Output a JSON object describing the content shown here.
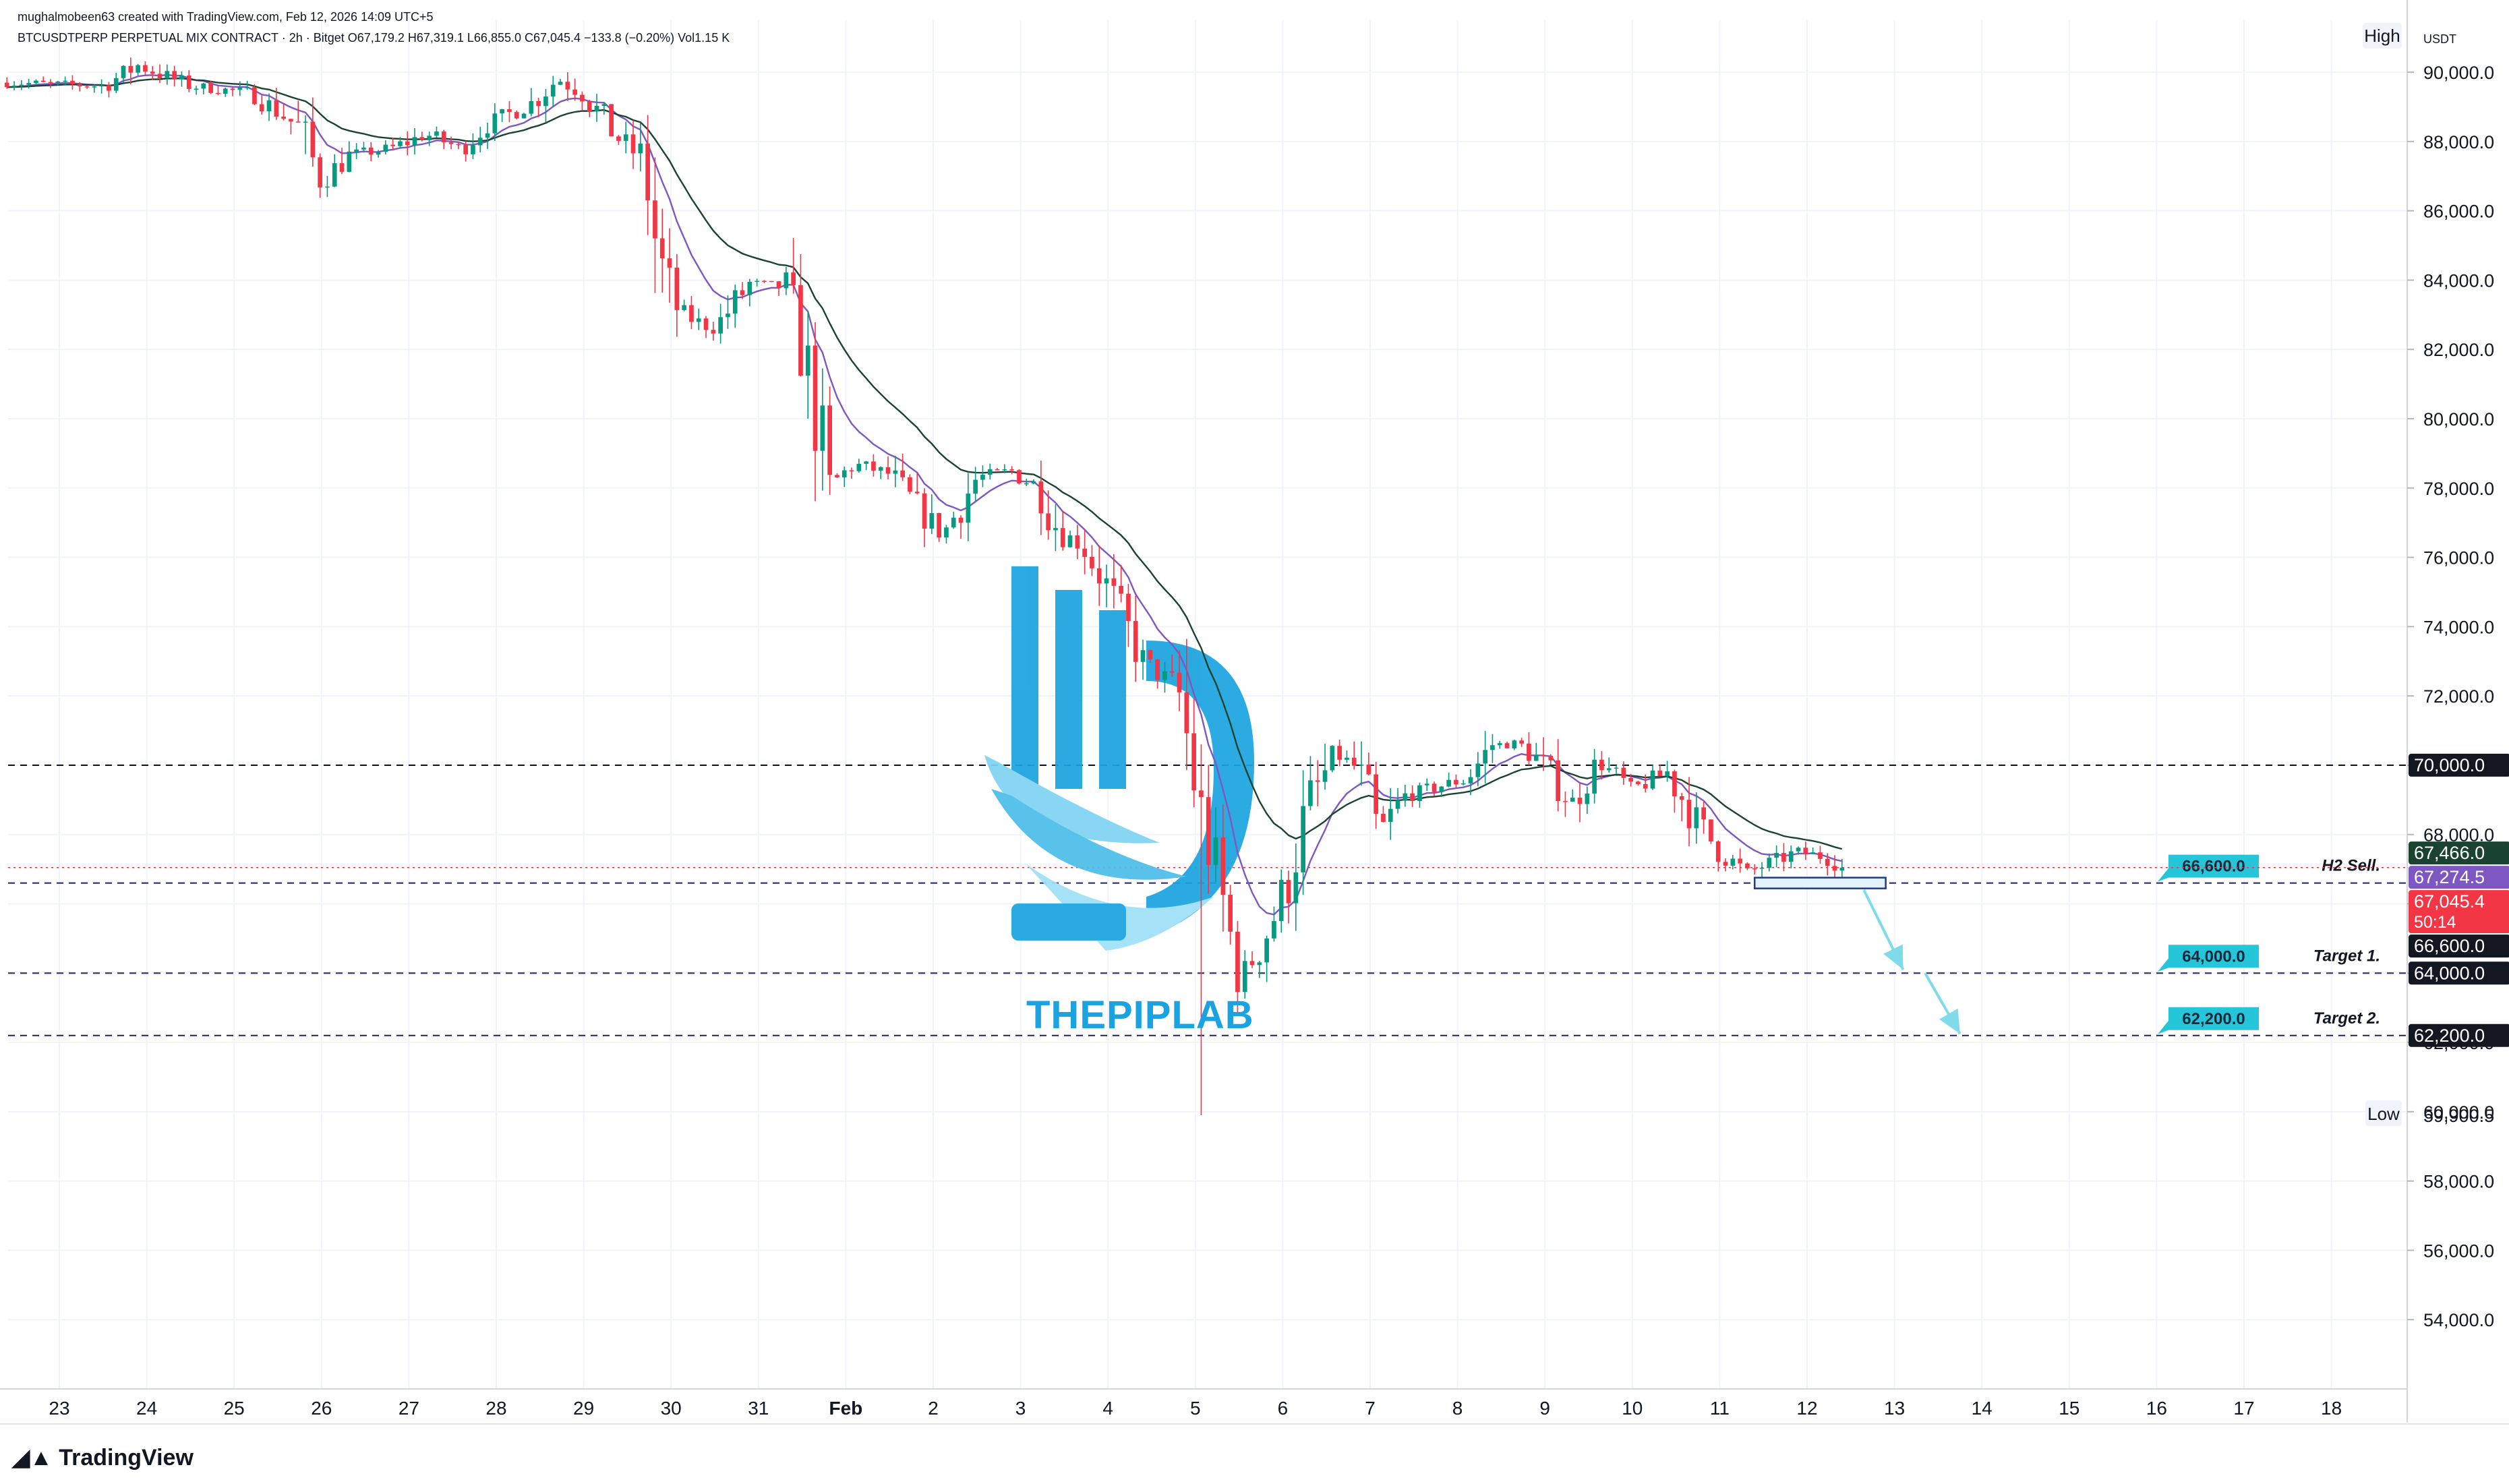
{
  "header": {
    "created_line": "mughalmobeen63 created with TradingView.com, Feb 12, 2026 14:09 UTC+5",
    "symbol_line": "BTCUSDTPERP PERPETUAL MIX CONTRACT · 2h · Bitget  O67,179.2  H67,319.1  L66,855.0  C67,045.4  −133.8 (−0.20%)  Vol1.15 K"
  },
  "footer": {
    "brand": "TradingView"
  },
  "watermark": {
    "text": "THEPIPLAB",
    "color": "#1aa3e0"
  },
  "chart_data": {
    "type": "candlestick",
    "currency_label": "USDT",
    "ylim": [
      52000,
      91500
    ],
    "y_ticks": [
      54000,
      56000,
      58000,
      60000,
      62000,
      64000,
      66000,
      68000,
      70000,
      72000,
      74000,
      76000,
      78000,
      80000,
      82000,
      84000,
      86000,
      88000,
      90000
    ],
    "y_tick_labels": [
      "54,000.0",
      "56,000.0",
      "58,000.0",
      "60,000.0",
      "62,000.0",
      "64,000.0",
      "66,000.0",
      "68,000.0",
      "70,000.0",
      "72,000.0",
      "74,000.0",
      "76,000.0",
      "78,000.0",
      "80,000.0",
      "82,000.0",
      "84,000.0",
      "86,000.0",
      "88,000.0",
      "90,000.0"
    ],
    "x_tick_labels": [
      "23",
      "24",
      "25",
      "26",
      "27",
      "28",
      "29",
      "30",
      "31",
      "Feb",
      "2",
      "3",
      "4",
      "5",
      "6",
      "7",
      "8",
      "9",
      "10",
      "11",
      "12",
      "13",
      "14",
      "15",
      "16",
      "17",
      "18"
    ],
    "x_range_days": [
      22.4,
      19.5
    ],
    "high_label": "High",
    "low": {
      "label": "Low",
      "value": 59900.5,
      "value_text": "59,900.5"
    },
    "price_badges": [
      {
        "value": 70000,
        "text": "70,000.0",
        "color": "#131722"
      },
      {
        "value": 67466,
        "text": "67,466.0",
        "color": "#1b4332"
      },
      {
        "value": 67274.5,
        "text": "67,274.5",
        "color": "#7e57c2"
      },
      {
        "value": 67045.4,
        "text": "67,045.4",
        "countdown": "50:14",
        "color": "#f23645"
      },
      {
        "value": 66600,
        "text": "66,600.0",
        "color": "#131722"
      },
      {
        "value": 64000,
        "text": "64,000.0",
        "color": "#131722"
      },
      {
        "value": 62200,
        "text": "62,200.0",
        "color": "#131722"
      }
    ],
    "levels": [
      {
        "value": 70000
      },
      {
        "value": 66600,
        "label": "H2 Sell.",
        "tag": "66,600.0"
      },
      {
        "value": 64000,
        "label": "Target 1.",
        "tag": "64,000.0"
      },
      {
        "value": 62200,
        "label": "Target 2.",
        "tag": "62,200.0"
      }
    ],
    "current_price": 67045.4,
    "channel": {
      "upper": [
        [
          8.15,
          72300
        ],
        [
          12.8,
          67000
        ]
      ],
      "lower": [
        [
          7.55,
          69200
        ],
        [
          12.95,
          64000
        ]
      ]
    },
    "anchors": [
      [
        22.4,
        89700
      ],
      [
        23.5,
        89600
      ],
      [
        23.9,
        90200
      ],
      [
        24.5,
        89600
      ],
      [
        25.2,
        89400
      ],
      [
        25.75,
        88400
      ],
      [
        26.0,
        86800
      ],
      [
        26.3,
        87600
      ],
      [
        26.8,
        87800
      ],
      [
        27.2,
        88200
      ],
      [
        27.6,
        87800
      ],
      [
        27.9,
        88500
      ],
      [
        28.4,
        89100
      ],
      [
        28.7,
        89800
      ],
      [
        29.0,
        89400
      ],
      [
        29.35,
        88200
      ],
      [
        29.7,
        87400
      ],
      [
        29.85,
        84600
      ],
      [
        30.1,
        83000
      ],
      [
        30.5,
        82600
      ],
      [
        30.9,
        83900
      ],
      [
        31.3,
        83800
      ],
      [
        31.6,
        81000
      ],
      [
        31.8,
        78000
      ],
      [
        32.1,
        78700
      ],
      [
        32.5,
        78400
      ],
      [
        32.8,
        77500
      ],
      [
        33.1,
        76600
      ],
      [
        33.5,
        78300
      ],
      [
        33.9,
        78500
      ],
      [
        34.2,
        78000
      ],
      [
        34.45,
        76700
      ],
      [
        34.7,
        76400
      ],
      [
        35.0,
        75100
      ],
      [
        35.4,
        73000
      ],
      [
        35.8,
        72200
      ],
      [
        36.05,
        68700
      ],
      [
        36.3,
        66200
      ],
      [
        36.5,
        63800
      ],
      [
        36.75,
        64800
      ],
      [
        37.0,
        66200
      ],
      [
        37.3,
        68900
      ],
      [
        37.6,
        70300
      ],
      [
        37.85,
        69900
      ],
      [
        38.1,
        68100
      ],
      [
        38.4,
        69100
      ],
      [
        38.8,
        69400
      ],
      [
        39.1,
        69600
      ],
      [
        39.4,
        70600
      ],
      [
        39.7,
        70600
      ],
      [
        39.95,
        70100
      ],
      [
        40.3,
        68900
      ],
      [
        40.6,
        70100
      ],
      [
        41.0,
        69300
      ],
      [
        41.4,
        69800
      ],
      [
        41.7,
        68500
      ],
      [
        42.0,
        67500
      ],
      [
        42.3,
        66900
      ],
      [
        42.6,
        67200
      ],
      [
        42.9,
        67500
      ],
      [
        43.2,
        67350
      ],
      [
        43.45,
        67045
      ]
    ],
    "ema_fast_color": "#7e57c2",
    "ema_slow_color": "#1b4332",
    "up_color": "#089981",
    "down_color": "#f23645"
  }
}
